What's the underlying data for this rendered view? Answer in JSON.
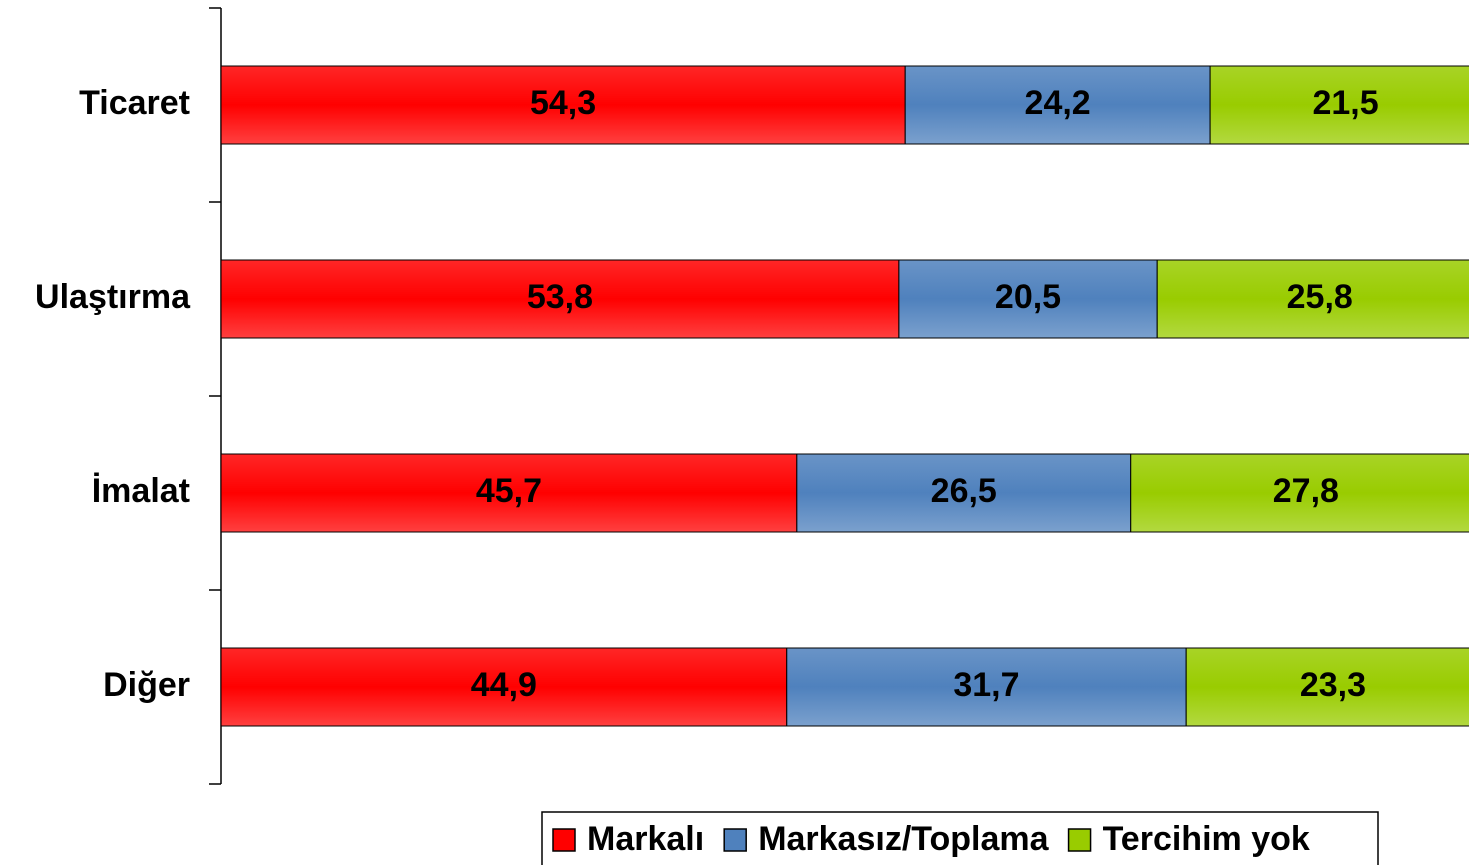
{
  "chart_data": {
    "type": "stacked_barh",
    "categories": [
      "Ticaret",
      "Ulaştırma",
      "İmalat",
      "Diğer"
    ],
    "xlim": [
      0,
      100
    ],
    "legend": "bottom",
    "series": [
      {
        "name": "Markalı",
        "color": "#ff0000",
        "values": [
          54.3,
          53.8,
          45.7,
          44.9
        ],
        "value_labels": [
          "54,3",
          "53,8",
          "45,7",
          "44,9"
        ]
      },
      {
        "name": "Markasız/Toplama",
        "color": "#4f81bd",
        "values": [
          24.2,
          20.5,
          26.5,
          31.7
        ],
        "value_labels": [
          "24,2",
          "20,5",
          "26,5",
          "31,7"
        ]
      },
      {
        "name": "Tercihim yok",
        "color": "#99cc00",
        "values": [
          21.5,
          25.8,
          27.8,
          23.3
        ],
        "value_labels": [
          "21,5",
          "25,8",
          "27,8",
          "23,3"
        ]
      }
    ]
  }
}
